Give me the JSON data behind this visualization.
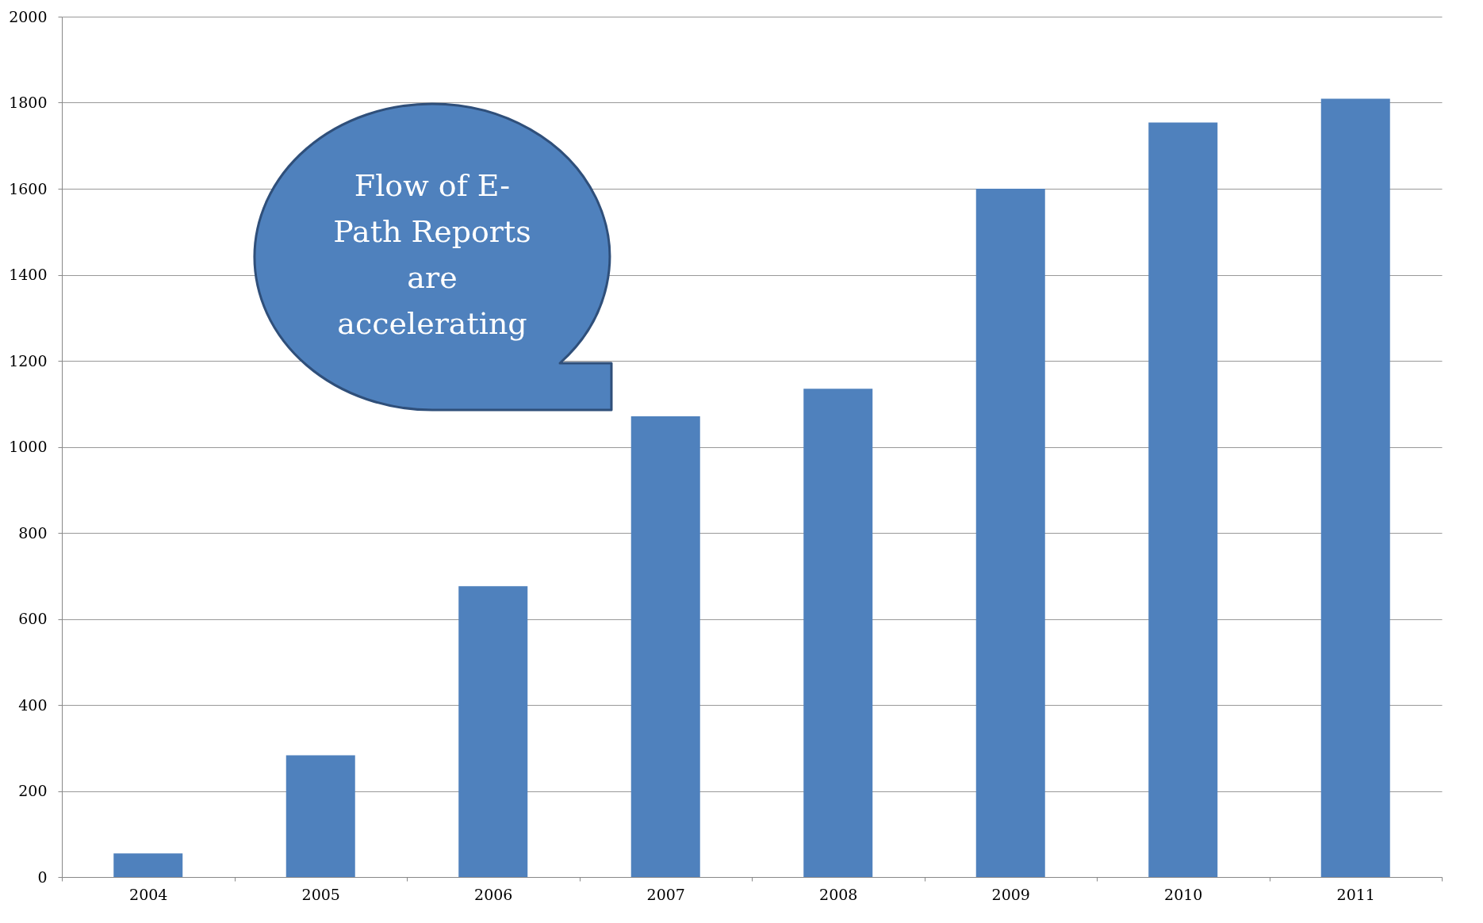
{
  "chart_data": {
    "type": "bar",
    "categories": [
      "2004",
      "2005",
      "2006",
      "2007",
      "2008",
      "2009",
      "2010",
      "2011"
    ],
    "values": [
      55,
      283,
      676,
      1071,
      1135,
      1600,
      1754,
      1809
    ],
    "color": "#4f81bd",
    "ylim": [
      0,
      2000
    ],
    "yticks": [
      0,
      200,
      400,
      600,
      800,
      1000,
      1200,
      1400,
      1600,
      1800,
      2000
    ],
    "grid": "y",
    "annotations": [
      "Flow of E-Path Reports are accelerating"
    ]
  }
}
